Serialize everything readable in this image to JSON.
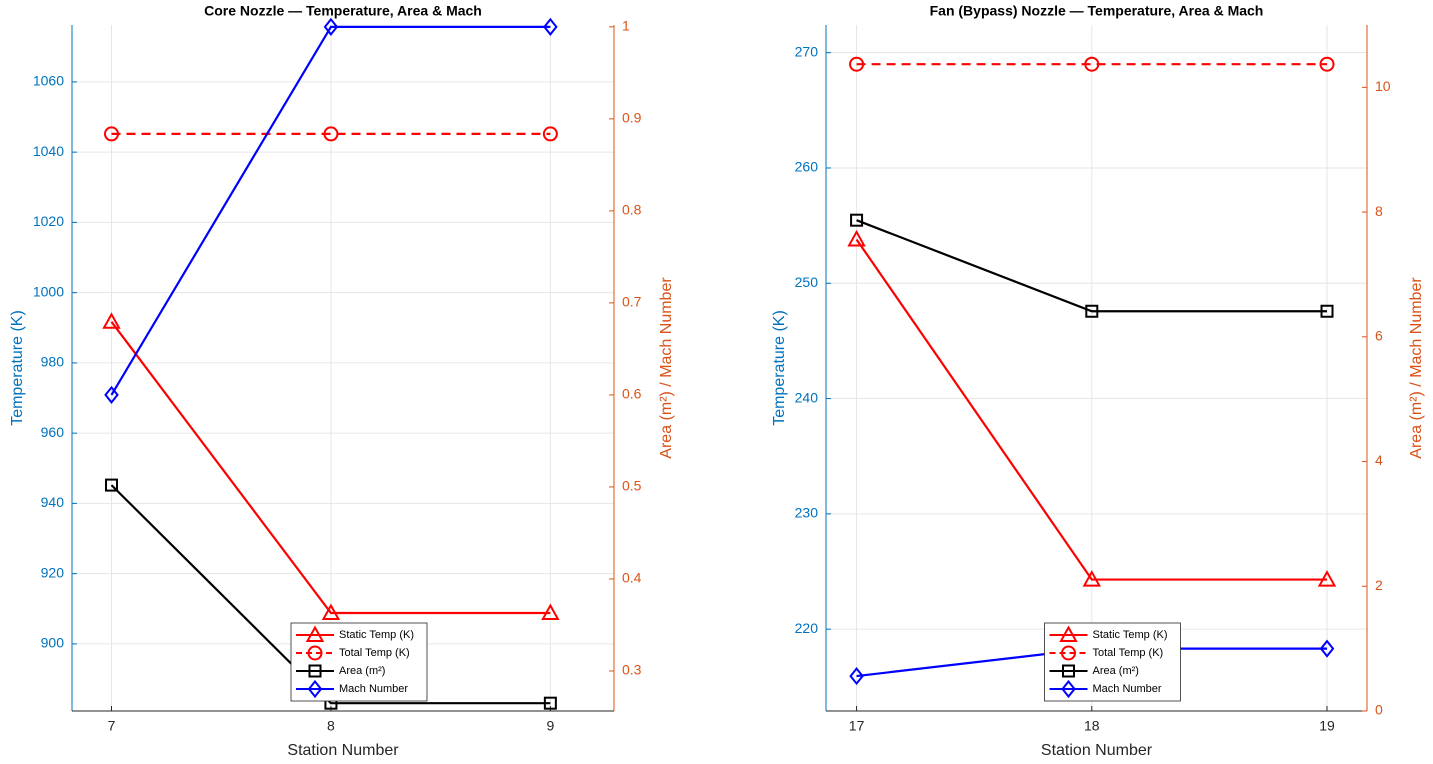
{
  "chart_data": [
    {
      "type": "line",
      "title": "Core Nozzle — Temperature, Area & Mach",
      "xlabel": "Station Number",
      "ylabel": "Temperature (K)",
      "y2label": "Area (m²) / Mach Number",
      "ycolor": "#0072bd",
      "y2color": "#d95319",
      "grid": true,
      "legend": "south",
      "x": [
        7,
        8,
        9
      ],
      "xlim": [
        6.82,
        9.29
      ],
      "xticks": [
        7,
        8,
        9
      ],
      "ylim": [
        880.9,
        1076.2
      ],
      "yticks": [
        900,
        920,
        940,
        960,
        980,
        1000,
        1020,
        1040,
        1060
      ],
      "y2lim": [
        0.2565,
        1.002
      ],
      "y2ticks": [
        0.3,
        0.4,
        0.5,
        0.6,
        0.7,
        0.8,
        0.9,
        1
      ],
      "series": [
        {
          "name": "Static Temp (K)",
          "color": "#ff0000",
          "marker": "triangle",
          "linestyle": "solid",
          "axis": "y",
          "values": [
            991.7,
            908.8,
            908.8
          ]
        },
        {
          "name": "Total Temp (K)",
          "color": "#ff0000",
          "marker": "circle",
          "linestyle": "dashed",
          "axis": "y",
          "values": [
            1045.2,
            1045.2,
            1045.2
          ]
        },
        {
          "name": "Area (m²)",
          "color": "#000000",
          "marker": "square",
          "linestyle": "solid",
          "axis": "y2",
          "values": [
            0.502,
            0.265,
            0.265
          ]
        },
        {
          "name": "Mach Number",
          "color": "#0000ff",
          "marker": "diamond",
          "linestyle": "solid",
          "axis": "y2",
          "values": [
            0.6,
            1.0,
            1.0
          ]
        }
      ]
    },
    {
      "type": "line",
      "title": "Fan (Bypass) Nozzle — Temperature, Area & Mach",
      "xlabel": "Station Number",
      "ylabel": "Temperature (K)",
      "y2label": "Area (m²) / Mach Number",
      "ycolor": "#0072bd",
      "y2color": "#d95319",
      "grid": true,
      "legend": "south",
      "x": [
        17,
        18,
        19
      ],
      "xlim": [
        16.87,
        19.17
      ],
      "xticks": [
        17,
        18,
        19
      ],
      "ylim": [
        212.9,
        272.4
      ],
      "yticks": [
        220,
        230,
        240,
        250,
        260,
        270
      ],
      "y2lim": [
        0,
        11
      ],
      "y2ticks": [
        0,
        2,
        4,
        6,
        8,
        10
      ],
      "series": [
        {
          "name": "Static Temp (K)",
          "color": "#ff0000",
          "marker": "triangle",
          "linestyle": "solid",
          "axis": "y",
          "values": [
            253.8,
            224.3,
            224.3
          ]
        },
        {
          "name": "Total Temp (K)",
          "color": "#ff0000",
          "marker": "circle",
          "linestyle": "dashed",
          "axis": "y",
          "values": [
            269.0,
            269.0,
            269.0
          ]
        },
        {
          "name": "Area (m²)",
          "color": "#000000",
          "marker": "square",
          "linestyle": "solid",
          "axis": "y2",
          "values": [
            7.87,
            6.41,
            6.41
          ]
        },
        {
          "name": "Mach Number",
          "color": "#0000ff",
          "marker": "diamond",
          "linestyle": "solid",
          "axis": "y2",
          "values": [
            0.56,
            1.0,
            1.0
          ]
        }
      ]
    }
  ]
}
